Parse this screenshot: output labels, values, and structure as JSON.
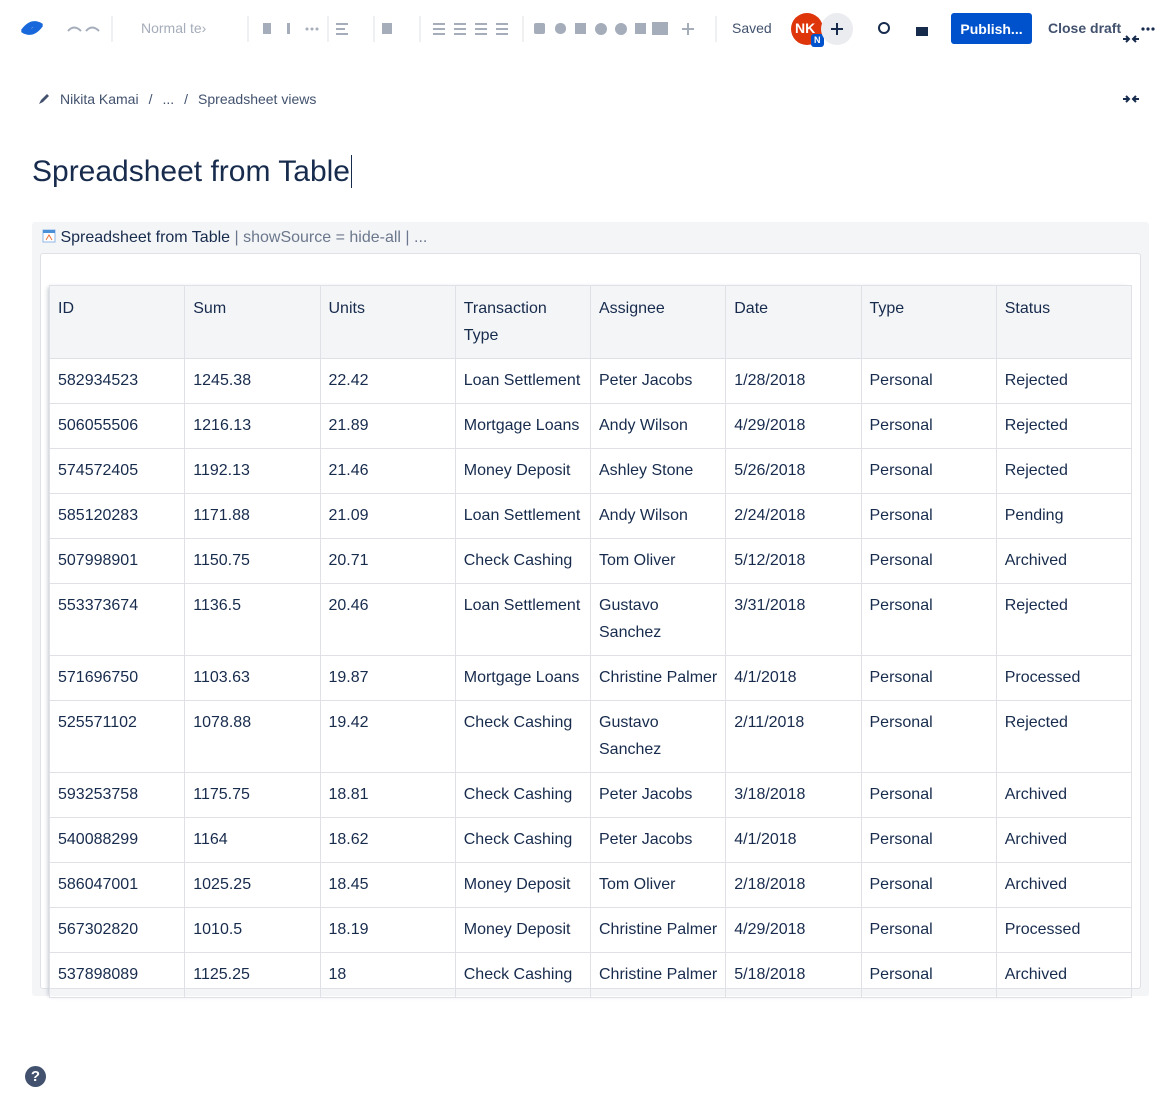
{
  "toolbar": {
    "text_style": "Normal te›",
    "status": "Saved",
    "avatar": "NK",
    "avatar_badge": "N",
    "publish": "Publish...",
    "close_draft": "Close draft"
  },
  "breadcrumb": [
    "Nikita Kamai",
    "/",
    "...",
    "/",
    "Spreadsheet views"
  ],
  "title": "Spreadsheet from Table",
  "macro": {
    "name": "Spreadsheet from Table",
    "params": "| showSource = hide-all | ..."
  },
  "table": {
    "header": [
      "ID",
      "Sum",
      "Units",
      "Transaction Type",
      "Assignee",
      "Date",
      "Type",
      "Status"
    ],
    "rows": [
      [
        "582934523",
        "1245.38",
        "22.42",
        "Loan Settlement",
        "Peter Jacobs",
        "1/28/2018",
        "Personal",
        "Rejected"
      ],
      [
        "506055506",
        "1216.13",
        "21.89",
        "Mortgage Loans",
        "Andy Wilson",
        "4/29/2018",
        "Personal",
        "Rejected"
      ],
      [
        "574572405",
        "1192.13",
        "21.46",
        "Money Deposit",
        "Ashley Stone",
        "5/26/2018",
        "Personal",
        "Rejected"
      ],
      [
        "585120283",
        "1171.88",
        "21.09",
        "Loan Settlement",
        "Andy Wilson",
        "2/24/2018",
        "Personal",
        "Pending"
      ],
      [
        "507998901",
        "1150.75",
        "20.71",
        "Check Cashing",
        "Tom Oliver",
        "5/12/2018",
        "Personal",
        "Archived"
      ],
      [
        "553373674",
        "1136.5",
        "20.46",
        "Loan Settlement",
        "Gustavo Sanchez",
        "3/31/2018",
        "Personal",
        "Rejected"
      ],
      [
        "571696750",
        "1103.63",
        "19.87",
        "Mortgage Loans",
        "Christine Palmer",
        "4/1/2018",
        "Personal",
        "Processed"
      ],
      [
        "525571102",
        "1078.88",
        "19.42",
        "Check Cashing",
        "Gustavo Sanchez",
        "2/11/2018",
        "Personal",
        "Rejected"
      ],
      [
        "593253758",
        "1175.75",
        "18.81",
        "Check Cashing",
        "Peter Jacobs",
        "3/18/2018",
        "Personal",
        "Archived"
      ],
      [
        "540088299",
        "1164",
        "18.62",
        "Check Cashing",
        "Peter Jacobs",
        "4/1/2018",
        "Personal",
        "Archived"
      ],
      [
        "586047001",
        "1025.25",
        "18.45",
        "Money Deposit",
        "Tom Oliver",
        "2/18/2018",
        "Personal",
        "Archived"
      ],
      [
        "567302820",
        "1010.5",
        "18.19",
        "Money Deposit",
        "Christine Palmer",
        "4/29/2018",
        "Personal",
        "Processed"
      ],
      [
        "537898089",
        "1125.25",
        "18",
        "Check Cashing",
        "Christine Palmer",
        "5/18/2018",
        "Personal",
        "Archived"
      ]
    ]
  },
  "help_icon": "?"
}
